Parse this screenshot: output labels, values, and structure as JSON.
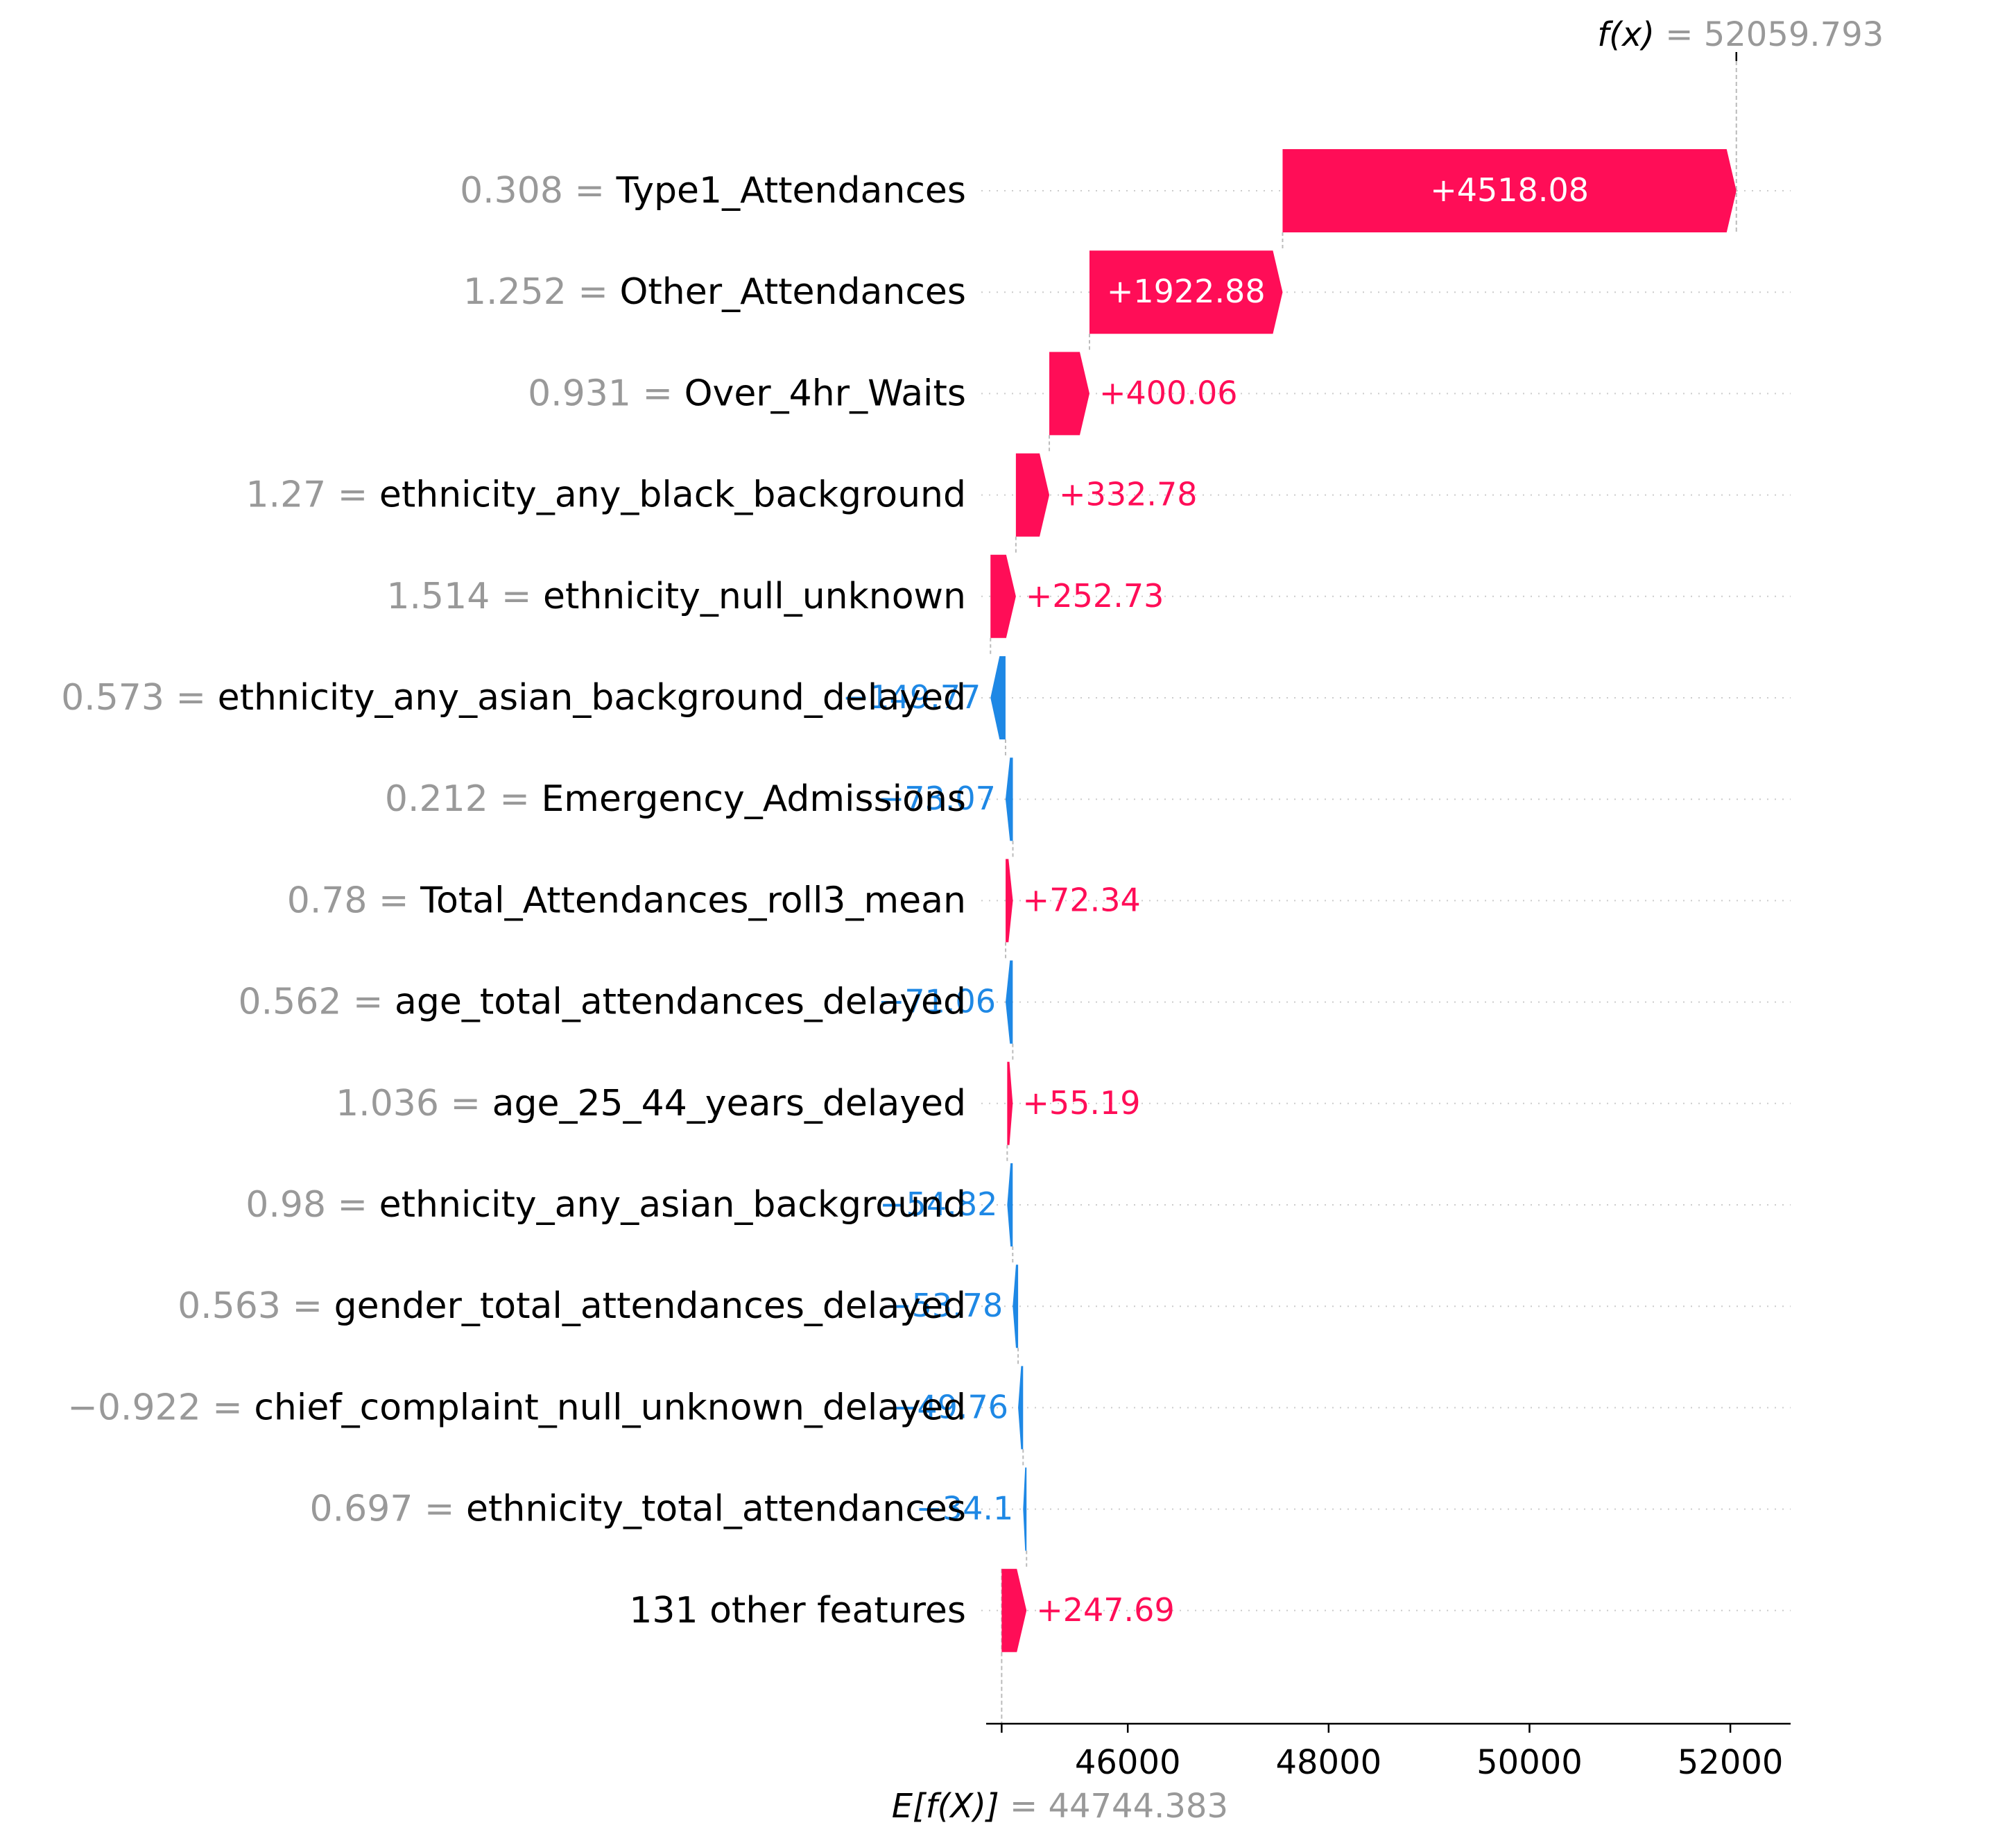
{
  "chart_data": {
    "type": "waterfall",
    "title": "",
    "xlabel": "",
    "ylabel": "",
    "base_value": 44744.383,
    "base_value_text": "44744.383",
    "base_label": "E[f(X)]",
    "output_value": 52059.793,
    "output_value_text": "52059.793",
    "output_label": "f(x)",
    "equals_sign": "=",
    "xlim": [
      44590,
      52600
    ],
    "x_ticks": [
      46000,
      48000,
      50000,
      52000
    ],
    "x_tick_labels": [
      "46000",
      "48000",
      "50000",
      "52000"
    ],
    "grid": "dotted horizontal rows",
    "colors": {
      "positive": "#ff0d57",
      "negative": "#1e88e5",
      "feature_value": "#999999",
      "feature_name": "#000000"
    },
    "features": [
      {
        "feature_value": "0.308",
        "name": "Type1_Attendances",
        "contribution": 4518.08,
        "label": "+4518.08"
      },
      {
        "feature_value": "1.252",
        "name": "Other_Attendances",
        "contribution": 1922.88,
        "label": "+1922.88"
      },
      {
        "feature_value": "0.931",
        "name": "Over_4hr_Waits",
        "contribution": 400.06,
        "label": "+400.06"
      },
      {
        "feature_value": "1.27",
        "name": "ethnicity_any_black_background",
        "contribution": 332.78,
        "label": "+332.78"
      },
      {
        "feature_value": "1.514",
        "name": "ethnicity_null_unknown",
        "contribution": 252.73,
        "label": "+252.73"
      },
      {
        "feature_value": "0.573",
        "name": "ethnicity_any_asian_background_delayed",
        "contribution": -149.77,
        "label": "−149.77"
      },
      {
        "feature_value": "0.212",
        "name": "Emergency_Admissions",
        "contribution": -73.07,
        "label": "−73.07"
      },
      {
        "feature_value": "0.78",
        "name": "Total_Attendances_roll3_mean",
        "contribution": 72.34,
        "label": "+72.34"
      },
      {
        "feature_value": "0.562",
        "name": "age_total_attendances_delayed",
        "contribution": -71.06,
        "label": "−71.06"
      },
      {
        "feature_value": "1.036",
        "name": "age_25_44_years_delayed",
        "contribution": 55.19,
        "label": "+55.19"
      },
      {
        "feature_value": "0.98",
        "name": "ethnicity_any_asian_background",
        "contribution": -54.82,
        "label": "−54.82"
      },
      {
        "feature_value": "0.563",
        "name": "gender_total_attendances_delayed",
        "contribution": -53.78,
        "label": "−53.78"
      },
      {
        "feature_value": "−0.922",
        "name": "chief_complaint_null_unknown_delayed",
        "contribution": -49.76,
        "label": "−49.76"
      },
      {
        "feature_value": "0.697",
        "name": "ethnicity_total_attendances",
        "contribution": -34.1,
        "label": "−34.1"
      },
      {
        "feature_value": "",
        "name": "131 other features",
        "contribution": 247.69,
        "label": "+247.69"
      }
    ]
  }
}
